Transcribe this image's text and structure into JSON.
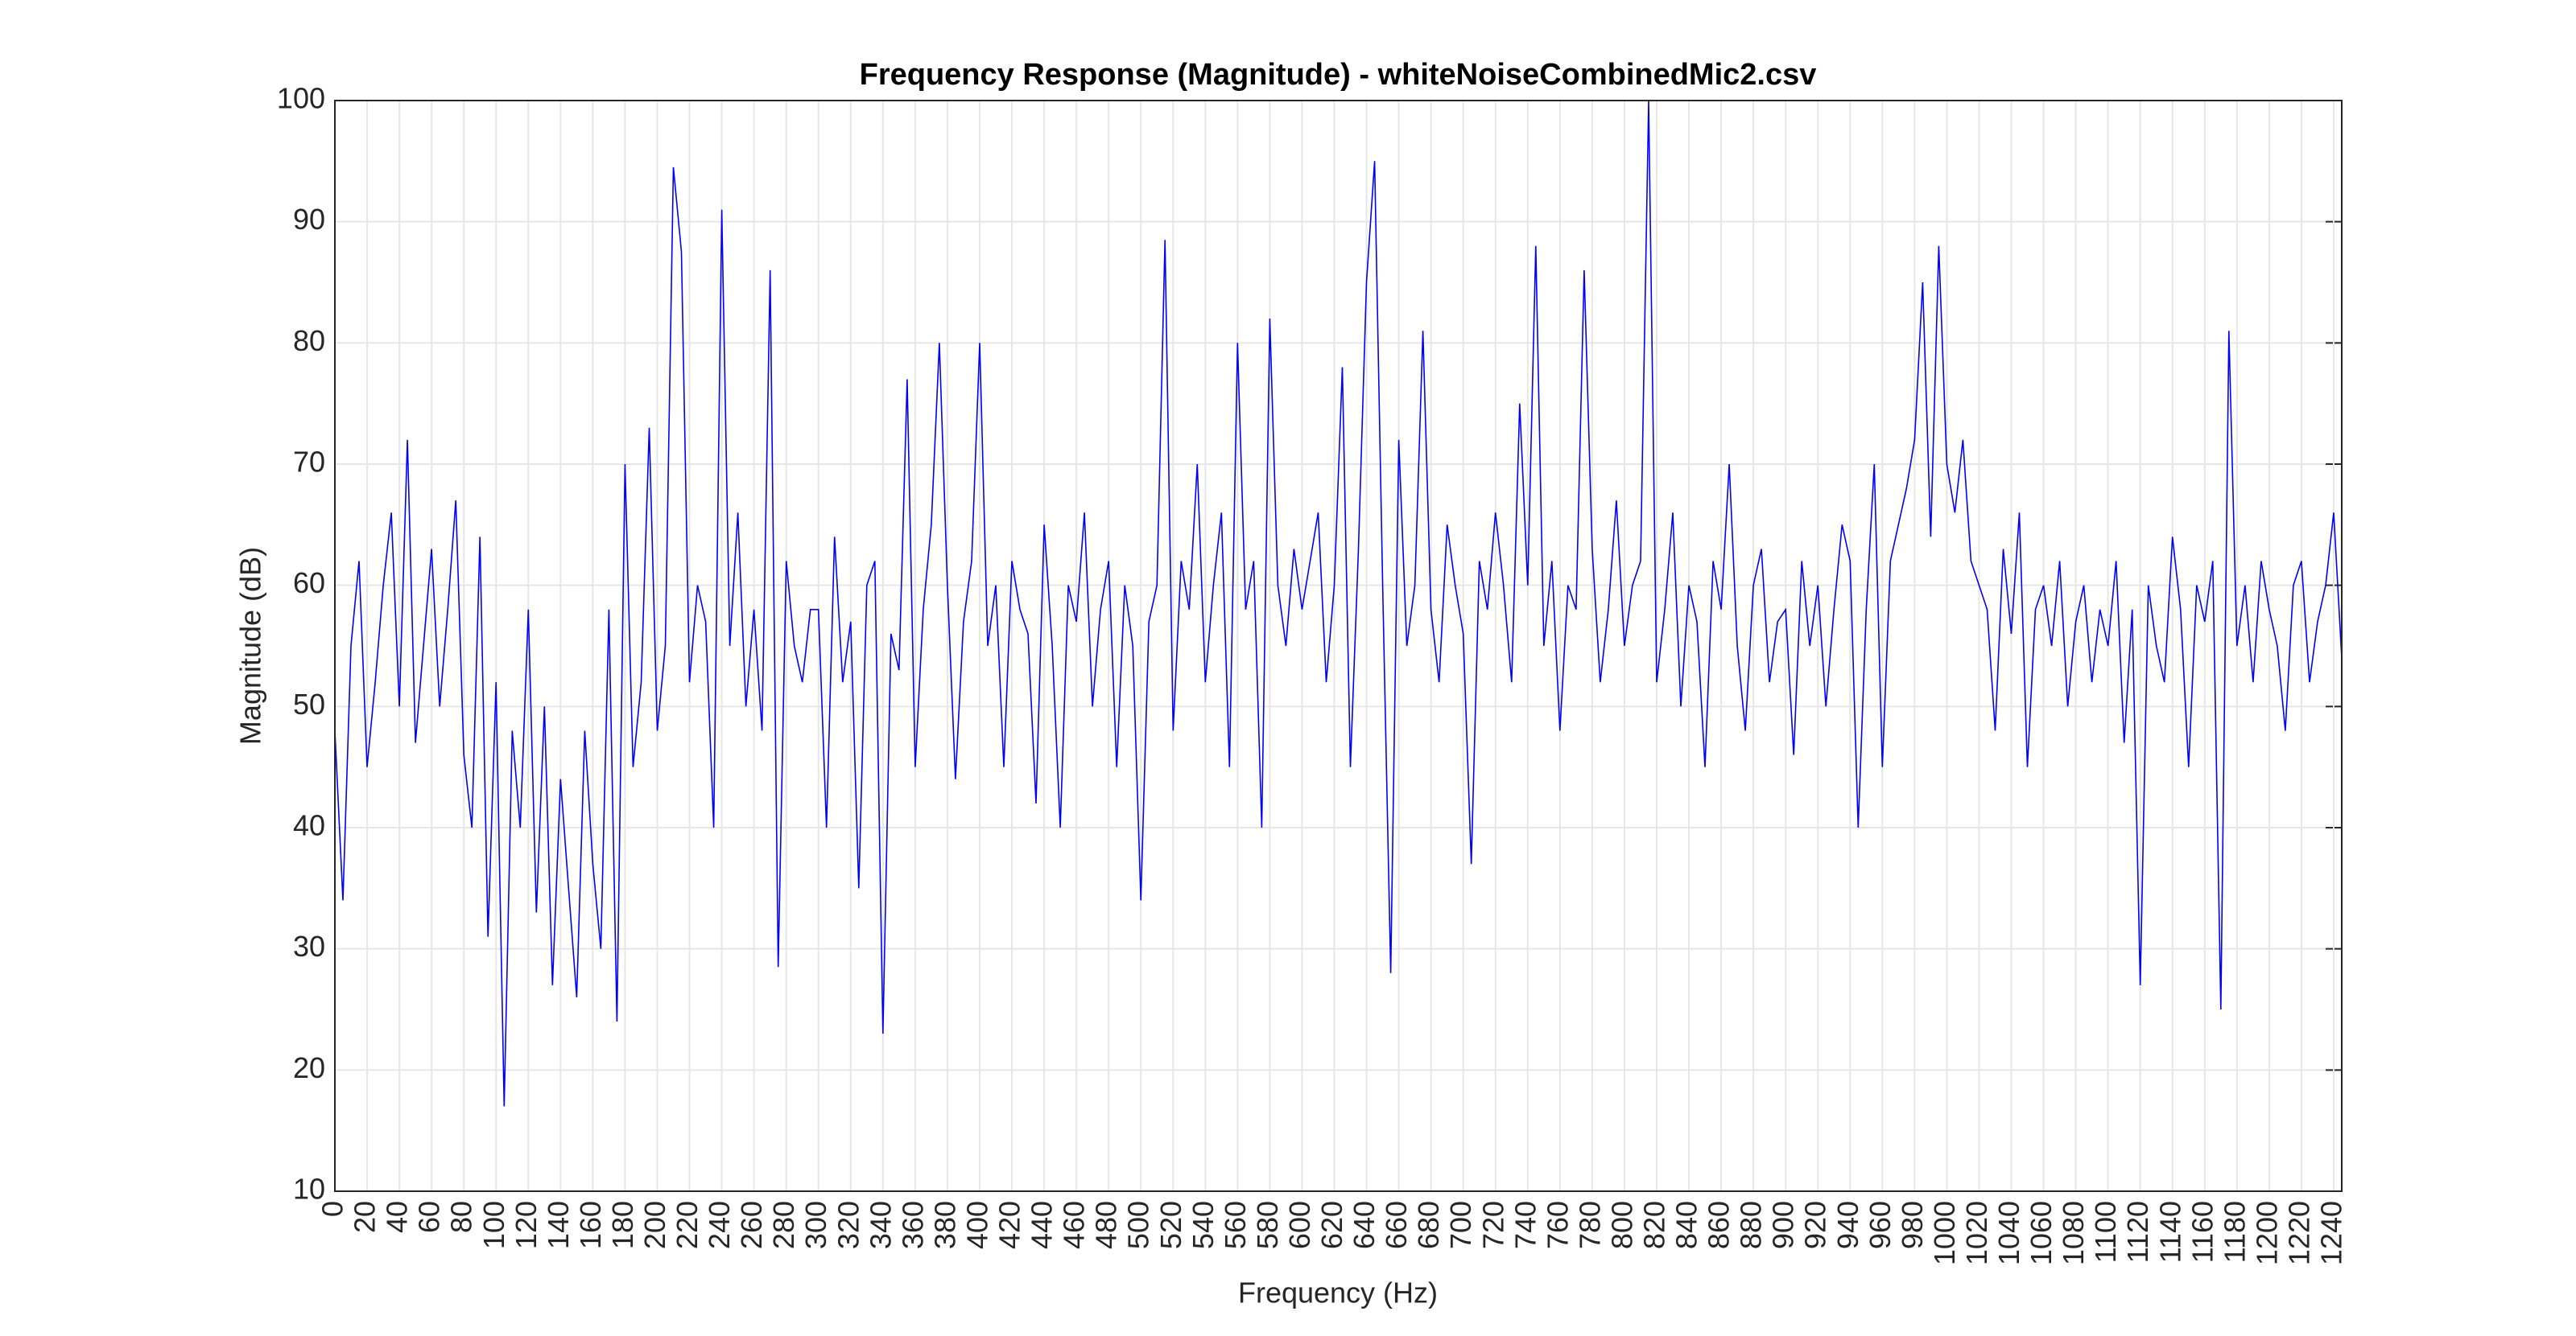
{
  "chart_data": {
    "type": "line",
    "title": "Frequency Response (Magnitude) - whiteNoiseCombinedMic2.csv",
    "x_label": "Frequency (Hz)",
    "y_label": "Magnitude (dB)",
    "color": "#0000ff",
    "grid": true,
    "xlim": [
      0,
      1245
    ],
    "ylim": [
      10,
      100
    ],
    "xticks": [
      0,
      20,
      40,
      60,
      80,
      100,
      120,
      140,
      160,
      180,
      200,
      220,
      240,
      260,
      280,
      300,
      320,
      340,
      360,
      380,
      400,
      420,
      440,
      460,
      480,
      500,
      520,
      540,
      560,
      580,
      600,
      620,
      640,
      660,
      680,
      700,
      720,
      740,
      760,
      780,
      800,
      820,
      840,
      860,
      880,
      900,
      920,
      940,
      960,
      980,
      1000,
      1020,
      1040,
      1060,
      1080,
      1100,
      1120,
      1140,
      1160,
      1180,
      1200,
      1220,
      1240
    ],
    "yticks": [
      10,
      20,
      30,
      40,
      50,
      60,
      70,
      80,
      90,
      100
    ],
    "x": [
      0,
      5,
      10,
      15,
      20,
      25,
      30,
      35,
      40,
      45,
      50,
      55,
      60,
      65,
      70,
      75,
      80,
      85,
      90,
      95,
      100,
      105,
      110,
      115,
      120,
      125,
      130,
      135,
      140,
      145,
      150,
      155,
      160,
      165,
      170,
      175,
      180,
      185,
      190,
      195,
      200,
      205,
      210,
      215,
      220,
      225,
      230,
      235,
      240,
      245,
      250,
      255,
      260,
      265,
      270,
      275,
      280,
      285,
      290,
      295,
      300,
      305,
      310,
      315,
      320,
      325,
      330,
      335,
      340,
      345,
      350,
      355,
      360,
      365,
      370,
      375,
      380,
      385,
      390,
      395,
      400,
      405,
      410,
      415,
      420,
      425,
      430,
      435,
      440,
      445,
      450,
      455,
      460,
      465,
      470,
      475,
      480,
      485,
      490,
      495,
      500,
      505,
      510,
      515,
      520,
      525,
      530,
      535,
      540,
      545,
      550,
      555,
      560,
      565,
      570,
      575,
      580,
      585,
      590,
      595,
      600,
      605,
      610,
      615,
      620,
      625,
      630,
      635,
      640,
      645,
      650,
      655,
      660,
      665,
      670,
      675,
      680,
      685,
      690,
      695,
      700,
      705,
      710,
      715,
      720,
      725,
      730,
      735,
      740,
      745,
      750,
      755,
      760,
      765,
      770,
      775,
      780,
      785,
      790,
      795,
      800,
      805,
      810,
      815,
      820,
      825,
      830,
      835,
      840,
      845,
      850,
      855,
      860,
      865,
      870,
      875,
      880,
      885,
      890,
      895,
      900,
      905,
      910,
      915,
      920,
      925,
      930,
      935,
      940,
      945,
      950,
      955,
      960,
      965,
      970,
      975,
      980,
      985,
      990,
      995,
      1000,
      1005,
      1010,
      1015,
      1020,
      1025,
      1030,
      1035,
      1040,
      1045,
      1050,
      1055,
      1060,
      1065,
      1070,
      1075,
      1080,
      1085,
      1090,
      1095,
      1100,
      1105,
      1110,
      1115,
      1120,
      1125,
      1130,
      1135,
      1140,
      1145,
      1150,
      1155,
      1160,
      1165,
      1170,
      1175,
      1180,
      1185,
      1190,
      1195,
      1200,
      1205,
      1210,
      1215,
      1220,
      1225,
      1230,
      1235,
      1240,
      1245
    ],
    "values": [
      48,
      34,
      55,
      62,
      45,
      52,
      60,
      66,
      50,
      72,
      47,
      55,
      63,
      50,
      58,
      67,
      46,
      40,
      64,
      31,
      52,
      17,
      48,
      40,
      58,
      33,
      50,
      27,
      44,
      35,
      26,
      48,
      37,
      30,
      58,
      24,
      70,
      45,
      52,
      73,
      48,
      55,
      94.5,
      87.5,
      52,
      60,
      57,
      40,
      91,
      55,
      66,
      50,
      58,
      48,
      86,
      28.5,
      62,
      55,
      52,
      58,
      58,
      40,
      64,
      52,
      57,
      35,
      60,
      62,
      23,
      56,
      53,
      77,
      45,
      58,
      65,
      80,
      60,
      44,
      57,
      62,
      80,
      55,
      60,
      45,
      62,
      58,
      56,
      42,
      65,
      55,
      40,
      60,
      57,
      66,
      50,
      58,
      62,
      45,
      60,
      55,
      34,
      57,
      60,
      88.5,
      48,
      62,
      58,
      70,
      52,
      60,
      66,
      45,
      80,
      58,
      62,
      40,
      82,
      60,
      55,
      63,
      58,
      62,
      66,
      52,
      60,
      78,
      45,
      63,
      85,
      95,
      60,
      28,
      72,
      55,
      60,
      81,
      58,
      52,
      65,
      60,
      56,
      37,
      62,
      58,
      66,
      60,
      52,
      75,
      60,
      88,
      55,
      62,
      48,
      60,
      58,
      86,
      63,
      52,
      58,
      67,
      55,
      60,
      62,
      100,
      52,
      58,
      66,
      50,
      60,
      57,
      45,
      62,
      58,
      70,
      55,
      48,
      60,
      63,
      52,
      57,
      58,
      46,
      62,
      55,
      60,
      50,
      58,
      65,
      62,
      40,
      58,
      70,
      45,
      62,
      65,
      68,
      72,
      85,
      64,
      88,
      70,
      66,
      72,
      62,
      60,
      58,
      48,
      63,
      56,
      66,
      45,
      58,
      60,
      55,
      62,
      50,
      57,
      60,
      52,
      58,
      55,
      62,
      47,
      58,
      27,
      60,
      55,
      52,
      64,
      58,
      45,
      60,
      57,
      62,
      25,
      81,
      55,
      60,
      52,
      62,
      58,
      55,
      48,
      60,
      62,
      52,
      57,
      60,
      66,
      54
    ]
  }
}
